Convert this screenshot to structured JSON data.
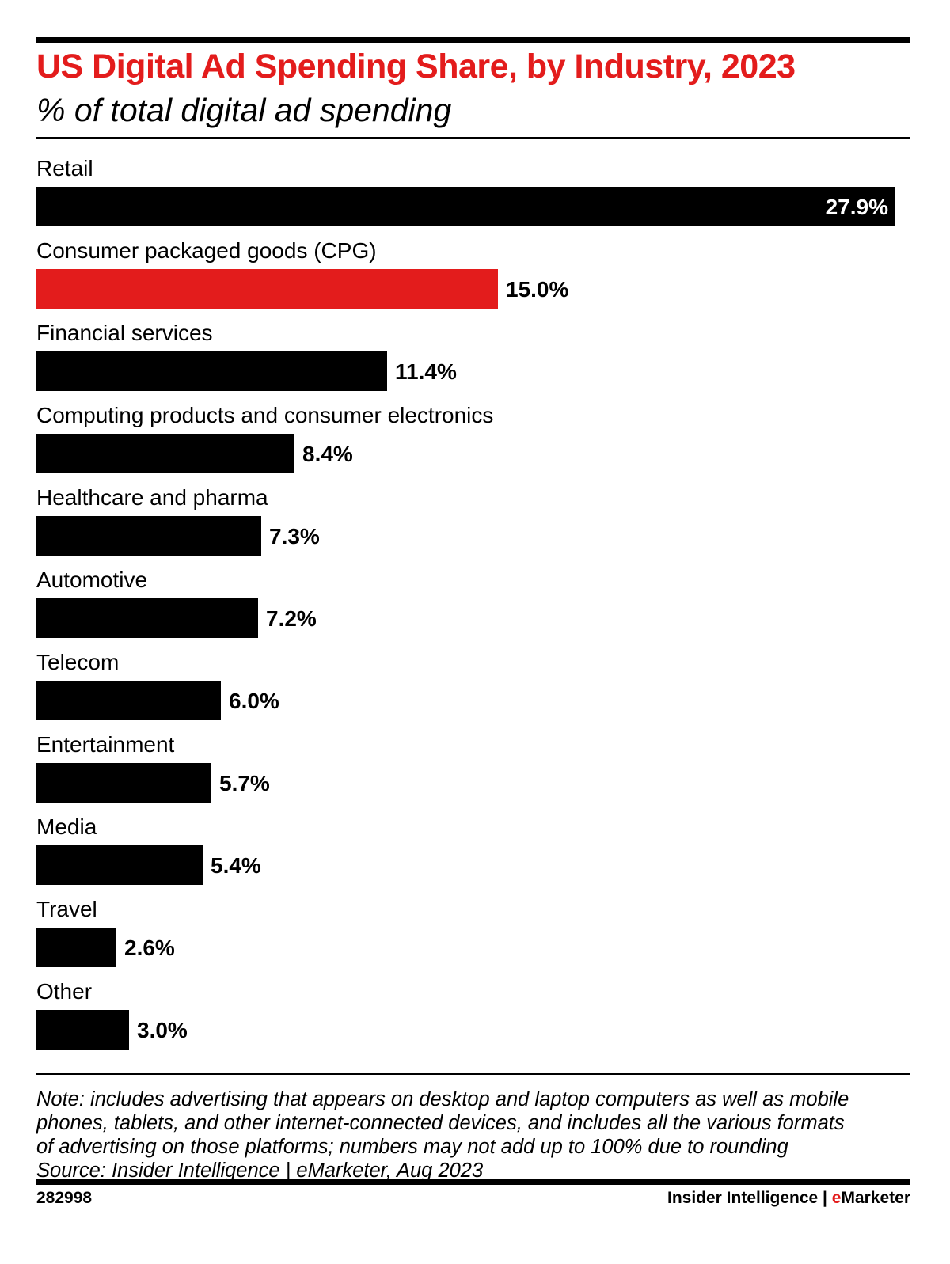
{
  "header": {
    "title": "US Digital Ad Spending Share, by Industry, 2023",
    "subtitle": "% of total digital ad spending"
  },
  "colors": {
    "accent": "#e31c1c",
    "bar_default": "#000000",
    "bar_highlight": "#e31c1c"
  },
  "chart_data": {
    "type": "bar",
    "orientation": "horizontal",
    "categories": [
      "Retail",
      "Consumer packaged goods (CPG)",
      "Financial services",
      "Computing products and consumer electronics",
      "Healthcare and pharma",
      "Automotive",
      "Telecom",
      "Entertainment",
      "Media",
      "Travel",
      "Other"
    ],
    "values": [
      27.9,
      15.0,
      11.4,
      8.4,
      7.3,
      7.2,
      6.0,
      5.7,
      5.4,
      2.6,
      3.0
    ],
    "value_labels": [
      "27.9%",
      "15.0%",
      "11.4%",
      "8.4%",
      "7.3%",
      "7.2%",
      "6.0%",
      "5.7%",
      "5.4%",
      "2.6%",
      "3.0%"
    ],
    "highlight_index": 1,
    "title": "US Digital Ad Spending Share, by Industry, 2023",
    "subtitle": "% of total digital ad spending",
    "xlabel": "",
    "ylabel": "",
    "xlim": [
      0,
      27.9
    ],
    "grid": false,
    "legend": "none"
  },
  "note": {
    "lines": [
      "Note: includes advertising that appears on desktop and laptop computers as well as mobile",
      "phones, tablets, and other internet-connected devices, and includes all the various formats",
      "of advertising on those platforms; numbers may not add up to 100% due to rounding",
      "Source: Insider Intelligence | eMarketer, Aug 2023"
    ]
  },
  "footer": {
    "chart_id": "282998",
    "brand_primary": "Insider Intelligence | ",
    "brand_secondary_first_letter": "e",
    "brand_secondary_rest": "Marketer"
  }
}
